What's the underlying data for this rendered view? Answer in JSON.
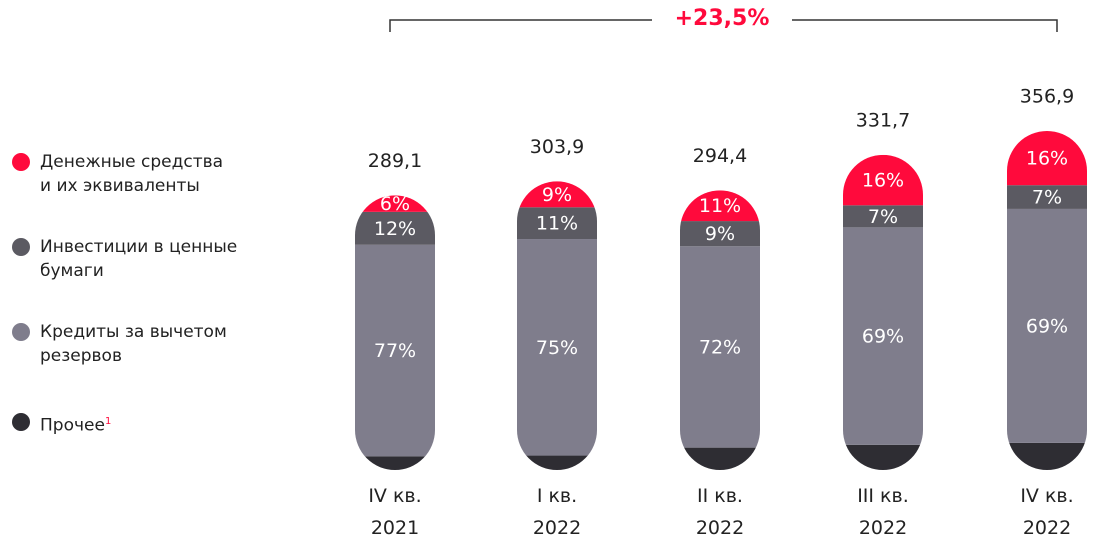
{
  "chart_data": {
    "type": "stacked-bar",
    "annotation": "+23,5%",
    "categories": [
      "IV кв.\n2021",
      "I кв.\n2022",
      "II кв.\n2022",
      "III кв.\n2022",
      "IV кв.\n2022"
    ],
    "totals": {
      "values": [
        289.1,
        303.9,
        294.4,
        331.7,
        356.9
      ],
      "value_labels": [
        "289,1",
        "303,9",
        "294,4",
        "331,7",
        "356,9"
      ]
    },
    "series": [
      {
        "name": "Денежные средства\nи их эквиваленты",
        "color": "#ff0a3c",
        "values": [
          6,
          9,
          11,
          16,
          16
        ],
        "value_labels": [
          "6%",
          "9%",
          "11%",
          "16%",
          "16%"
        ]
      },
      {
        "name": "Инвестиции в ценные\nбумаги",
        "color": "#5b5a62",
        "values": [
          12,
          11,
          9,
          7,
          7
        ],
        "value_labels": [
          "12%",
          "11%",
          "9%",
          "7%",
          "7%"
        ]
      },
      {
        "name": "Кредиты за вычетом\nрезервов",
        "color": "#7f7d8c",
        "values": [
          77,
          75,
          72,
          69,
          69
        ],
        "value_labels": [
          "77%",
          "75%",
          "72%",
          "69%",
          "69%"
        ]
      },
      {
        "name": "Прочее",
        "name_note": "1",
        "color": "#2e2d33",
        "values": [
          5,
          5,
          8,
          8,
          8
        ]
      }
    ]
  }
}
